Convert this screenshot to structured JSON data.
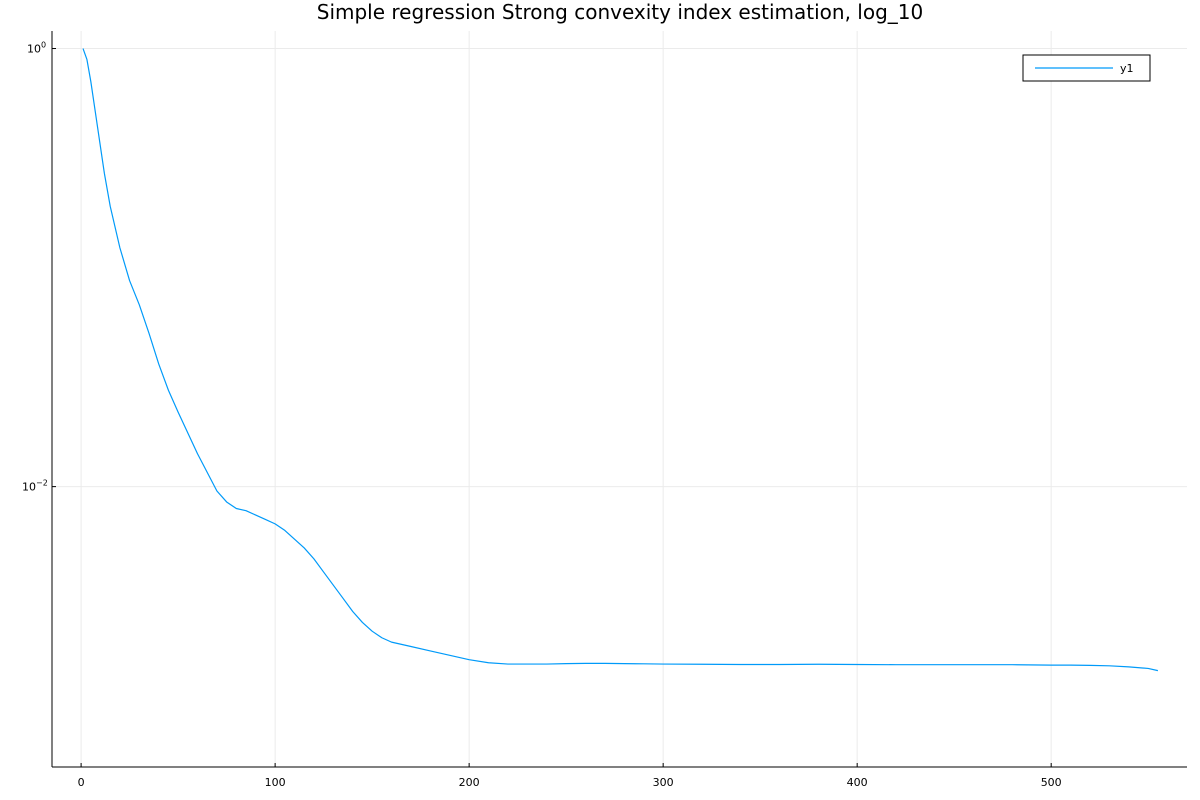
{
  "chart_data": {
    "type": "line",
    "title": "Simple regression Strong convexity index estimation, log_10",
    "xlabel": "",
    "ylabel": "",
    "x_scale": "linear",
    "y_scale": "log10",
    "xlim": [
      -15,
      570
    ],
    "ylim_log10": [
      -3.28,
      0.08
    ],
    "x_ticks": [
      "0",
      "100",
      "200",
      "300",
      "400",
      "500"
    ],
    "x_tick_values": [
      0,
      100,
      200,
      300,
      400,
      500
    ],
    "y_ticks": [
      {
        "value_log10": 0,
        "base": "10",
        "exp": "0"
      },
      {
        "value_log10": -2,
        "base": "10",
        "exp": "−2"
      }
    ],
    "grid": true,
    "legend": {
      "position": "top-right",
      "entries": [
        "y1"
      ]
    },
    "colors": {
      "series": "#009af9",
      "axis": "#000000",
      "grid": "#ebebeb"
    },
    "series": [
      {
        "name": "y1",
        "x": [
          1,
          3,
          5,
          8,
          12,
          15,
          20,
          25,
          30,
          35,
          40,
          45,
          50,
          60,
          70,
          75,
          80,
          85,
          90,
          95,
          100,
          105,
          110,
          115,
          120,
          125,
          130,
          135,
          140,
          145,
          150,
          155,
          160,
          170,
          180,
          190,
          200,
          210,
          220,
          230,
          240,
          250,
          260,
          270,
          280,
          290,
          300,
          320,
          340,
          360,
          380,
          400,
          420,
          440,
          460,
          480,
          500,
          510,
          520,
          530,
          540,
          550,
          555
        ],
        "y_log10": [
          0.0,
          -0.05,
          -0.15,
          -0.33,
          -0.57,
          -0.72,
          -0.91,
          -1.06,
          -1.17,
          -1.3,
          -1.44,
          -1.56,
          -1.66,
          -1.85,
          -2.02,
          -2.07,
          -2.1,
          -2.11,
          -2.13,
          -2.15,
          -2.17,
          -2.2,
          -2.24,
          -2.28,
          -2.33,
          -2.39,
          -2.45,
          -2.51,
          -2.57,
          -2.62,
          -2.66,
          -2.69,
          -2.71,
          -2.73,
          -2.75,
          -2.77,
          -2.79,
          -2.804,
          -2.81,
          -2.81,
          -2.81,
          -2.808,
          -2.807,
          -2.807,
          -2.808,
          -2.809,
          -2.81,
          -2.811,
          -2.812,
          -2.812,
          -2.811,
          -2.812,
          -2.813,
          -2.813,
          -2.813,
          -2.813,
          -2.815,
          -2.815,
          -2.816,
          -2.818,
          -2.823,
          -2.83,
          -2.84
        ]
      }
    ]
  }
}
